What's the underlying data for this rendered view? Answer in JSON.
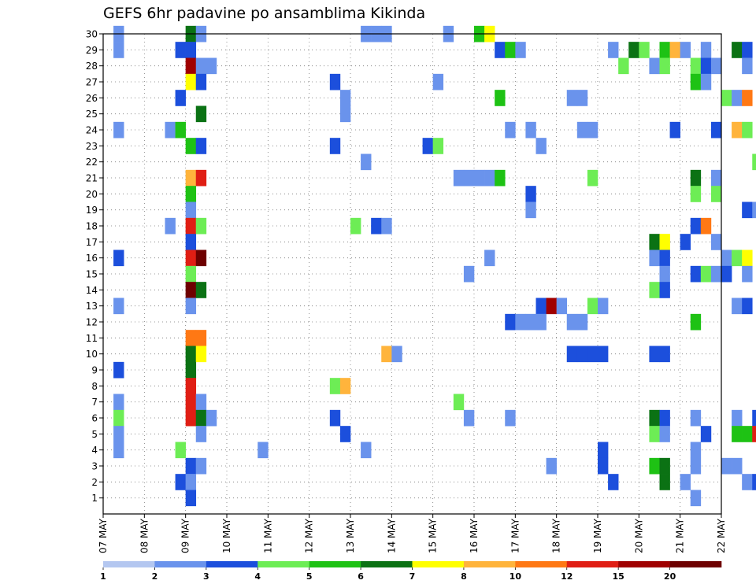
{
  "chart_data": {
    "type": "heatmap",
    "title": "GEFS 6hr padavine po ansamblima Kikinda",
    "xlabel": "",
    "ylabel": "",
    "y_ticks": [
      1,
      2,
      3,
      4,
      5,
      6,
      7,
      8,
      9,
      10,
      11,
      12,
      13,
      14,
      15,
      16,
      17,
      18,
      19,
      20,
      21,
      22,
      23,
      24,
      25,
      26,
      27,
      28,
      29,
      30
    ],
    "y_range": [
      0,
      30
    ],
    "x_range_days": [
      0,
      15
    ],
    "x_ticks": [
      {
        "label": "07 MAY",
        "day": 0
      },
      {
        "label": "08 MAY",
        "day": 1
      },
      {
        "label": "09 MAY",
        "day": 2
      },
      {
        "label": "10 MAY",
        "day": 3
      },
      {
        "label": "11 MAY",
        "day": 4
      },
      {
        "label": "12 MAY",
        "day": 5
      },
      {
        "label": "13 MAY",
        "day": 6
      },
      {
        "label": "14 MAY",
        "day": 7
      },
      {
        "label": "15 MAY",
        "day": 8
      },
      {
        "label": "16 MAY",
        "day": 9
      },
      {
        "label": "17 MAY",
        "day": 10
      },
      {
        "label": "18 MAY",
        "day": 11
      },
      {
        "label": "19 MAY",
        "day": 12
      },
      {
        "label": "20 MAY",
        "day": 13
      },
      {
        "label": "21 MAY",
        "day": 14
      },
      {
        "label": "22 MAY",
        "day": 15
      }
    ],
    "grid": true,
    "legend_position": "bottom",
    "legend": {
      "colors": [
        "#b4c7f0",
        "#6a93ec",
        "#1c4fdc",
        "#6ded55",
        "#1ec214",
        "#0b7214",
        "#ffff00",
        "#ffb43c",
        "#ff7814",
        "#e01e14",
        "#a00000",
        "#6e0000"
      ],
      "labels": [
        "1",
        "2",
        "3",
        "4",
        "5",
        "6",
        "7",
        "8",
        "10",
        "12",
        "15",
        "20"
      ]
    },
    "cells": [
      [
        0.25,
        30,
        1
      ],
      [
        2,
        30,
        5
      ],
      [
        2.25,
        30,
        1
      ],
      [
        6.25,
        30,
        1
      ],
      [
        6.5,
        30,
        1
      ],
      [
        6.75,
        30,
        1
      ],
      [
        8.25,
        30,
        1
      ],
      [
        9,
        30,
        4
      ],
      [
        9.25,
        30,
        6
      ],
      [
        0.25,
        29,
        1
      ],
      [
        1.75,
        29,
        2
      ],
      [
        2,
        29,
        2
      ],
      [
        9.5,
        29,
        2
      ],
      [
        9.75,
        29,
        4
      ],
      [
        10,
        29,
        1
      ],
      [
        12.25,
        29,
        1
      ],
      [
        12.75,
        29,
        5
      ],
      [
        13,
        29,
        3
      ],
      [
        13.5,
        29,
        4
      ],
      [
        13.75,
        29,
        7
      ],
      [
        14,
        29,
        1
      ],
      [
        14.5,
        29,
        1
      ],
      [
        15.25,
        29,
        5
      ],
      [
        15.5,
        29,
        2
      ],
      [
        16.25,
        29,
        1
      ],
      [
        16.5,
        29,
        2
      ],
      [
        17.25,
        29,
        1
      ],
      [
        17.5,
        29,
        2
      ],
      [
        17.75,
        29,
        1
      ],
      [
        18,
        29,
        2
      ],
      [
        18.25,
        29,
        3
      ],
      [
        2,
        28,
        10
      ],
      [
        2.25,
        28,
        1
      ],
      [
        2.5,
        28,
        1
      ],
      [
        12.5,
        28,
        3
      ],
      [
        13.25,
        28,
        1
      ],
      [
        13.5,
        28,
        3
      ],
      [
        14.25,
        28,
        3
      ],
      [
        14.5,
        28,
        2
      ],
      [
        14.75,
        28,
        1
      ],
      [
        15.5,
        28,
        1
      ],
      [
        16.25,
        28,
        3
      ],
      [
        16.5,
        28,
        4
      ],
      [
        17.5,
        28,
        1
      ],
      [
        2,
        27,
        6
      ],
      [
        2.25,
        27,
        2
      ],
      [
        5.5,
        27,
        2
      ],
      [
        8,
        27,
        1
      ],
      [
        14.25,
        27,
        4
      ],
      [
        14.5,
        27,
        1
      ],
      [
        1.75,
        26,
        2
      ],
      [
        5.75,
        26,
        1
      ],
      [
        9.5,
        26,
        4
      ],
      [
        11.25,
        26,
        1
      ],
      [
        11.5,
        26,
        1
      ],
      [
        15,
        26,
        3
      ],
      [
        15.25,
        26,
        1
      ],
      [
        15.5,
        26,
        8
      ],
      [
        2.25,
        25,
        5
      ],
      [
        5.75,
        25,
        1
      ],
      [
        0.25,
        24,
        1
      ],
      [
        1.5,
        24,
        1
      ],
      [
        1.75,
        24,
        4
      ],
      [
        9.75,
        24,
        1
      ],
      [
        10.25,
        24,
        1
      ],
      [
        11.5,
        24,
        1
      ],
      [
        11.75,
        24,
        1
      ],
      [
        13.75,
        24,
        2
      ],
      [
        14.75,
        24,
        2
      ],
      [
        15.25,
        24,
        7
      ],
      [
        15.5,
        24,
        3
      ],
      [
        16.25,
        24,
        1
      ],
      [
        16.5,
        24,
        4
      ],
      [
        2,
        23,
        4
      ],
      [
        2.25,
        23,
        2
      ],
      [
        5.5,
        23,
        2
      ],
      [
        7.75,
        23,
        2
      ],
      [
        8,
        23,
        3
      ],
      [
        10.5,
        23,
        1
      ],
      [
        17.25,
        23,
        3
      ],
      [
        6.25,
        22,
        1
      ],
      [
        15.75,
        22,
        3
      ],
      [
        16,
        22,
        6
      ],
      [
        16.25,
        22,
        2
      ],
      [
        2,
        21,
        7
      ],
      [
        2.25,
        21,
        9
      ],
      [
        8.5,
        21,
        1
      ],
      [
        8.75,
        21,
        1
      ],
      [
        9,
        21,
        1
      ],
      [
        9.25,
        21,
        1
      ],
      [
        9.5,
        21,
        4
      ],
      [
        11.75,
        21,
        3
      ],
      [
        14.25,
        21,
        5
      ],
      [
        14.75,
        21,
        1
      ],
      [
        16.5,
        21,
        1
      ],
      [
        16.75,
        21,
        1
      ],
      [
        17,
        21,
        2
      ],
      [
        17.25,
        21,
        11
      ],
      [
        17.5,
        21,
        2
      ],
      [
        2,
        20,
        4
      ],
      [
        10.25,
        20,
        2
      ],
      [
        14.25,
        20,
        3
      ],
      [
        14.75,
        20,
        3
      ],
      [
        17.25,
        20,
        1
      ],
      [
        2,
        19,
        1
      ],
      [
        10.25,
        19,
        1
      ],
      [
        15.5,
        19,
        2
      ],
      [
        15.75,
        19,
        1
      ],
      [
        16,
        19,
        1
      ],
      [
        16.25,
        19,
        2
      ],
      [
        16.5,
        19,
        6
      ],
      [
        17.25,
        19,
        1
      ],
      [
        17.75,
        19,
        2
      ],
      [
        1.5,
        18,
        1
      ],
      [
        2,
        18,
        9
      ],
      [
        2.25,
        18,
        3
      ],
      [
        6,
        18,
        3
      ],
      [
        6.5,
        18,
        2
      ],
      [
        6.75,
        18,
        1
      ],
      [
        14.25,
        18,
        2
      ],
      [
        14.5,
        18,
        8
      ],
      [
        17.25,
        18,
        5
      ],
      [
        17.5,
        18,
        2
      ],
      [
        17.75,
        18,
        1
      ],
      [
        2,
        17,
        2
      ],
      [
        13.25,
        17,
        5
      ],
      [
        13.5,
        17,
        6
      ],
      [
        14,
        17,
        2
      ],
      [
        14.75,
        17,
        1
      ],
      [
        0.25,
        16,
        2
      ],
      [
        2,
        16,
        9
      ],
      [
        2.25,
        16,
        11
      ],
      [
        9.25,
        16,
        1
      ],
      [
        13.25,
        16,
        1
      ],
      [
        13.5,
        16,
        2
      ],
      [
        15,
        16,
        1
      ],
      [
        15.25,
        16,
        3
      ],
      [
        15.5,
        16,
        6
      ],
      [
        17.75,
        16,
        1
      ],
      [
        2,
        15,
        3
      ],
      [
        8.75,
        15,
        1
      ],
      [
        13.5,
        15,
        1
      ],
      [
        14.25,
        15,
        2
      ],
      [
        14.5,
        15,
        3
      ],
      [
        14.75,
        15,
        1
      ],
      [
        15,
        15,
        2
      ],
      [
        15.5,
        15,
        1
      ],
      [
        17,
        15,
        2
      ],
      [
        17.25,
        15,
        7
      ],
      [
        2,
        14,
        11
      ],
      [
        2.25,
        14,
        5
      ],
      [
        13.25,
        14,
        3
      ],
      [
        13.5,
        14,
        2
      ],
      [
        16.75,
        14,
        1
      ],
      [
        0.25,
        13,
        1
      ],
      [
        2,
        13,
        1
      ],
      [
        10.5,
        13,
        2
      ],
      [
        10.75,
        13,
        10
      ],
      [
        11,
        13,
        1
      ],
      [
        11.75,
        13,
        3
      ],
      [
        12,
        13,
        1
      ],
      [
        15.25,
        13,
        1
      ],
      [
        15.5,
        13,
        2
      ],
      [
        16.5,
        13,
        1
      ],
      [
        16.75,
        13,
        3
      ],
      [
        17.75,
        13,
        3
      ],
      [
        9.75,
        12,
        2
      ],
      [
        10,
        12,
        1
      ],
      [
        10.25,
        12,
        1
      ],
      [
        10.5,
        12,
        1
      ],
      [
        11.25,
        12,
        1
      ],
      [
        11.5,
        12,
        1
      ],
      [
        14.25,
        12,
        4
      ],
      [
        16.5,
        12,
        1
      ],
      [
        2,
        11,
        8
      ],
      [
        2.25,
        11,
        8
      ],
      [
        16,
        11,
        5
      ],
      [
        16.25,
        11,
        4
      ],
      [
        16.5,
        11,
        1
      ],
      [
        2,
        10,
        5
      ],
      [
        2.25,
        10,
        6
      ],
      [
        6.75,
        10,
        7
      ],
      [
        7,
        10,
        1
      ],
      [
        11.25,
        10,
        2
      ],
      [
        11.5,
        10,
        2
      ],
      [
        11.75,
        10,
        2
      ],
      [
        12,
        10,
        2
      ],
      [
        13.25,
        10,
        2
      ],
      [
        13.5,
        10,
        2
      ],
      [
        16.75,
        10,
        2
      ],
      [
        17,
        10,
        3
      ],
      [
        17.25,
        10,
        5
      ],
      [
        17.5,
        10,
        4
      ],
      [
        17.75,
        10,
        4
      ],
      [
        0.25,
        9,
        2
      ],
      [
        2,
        9,
        5
      ],
      [
        2,
        8,
        9
      ],
      [
        5.5,
        8,
        3
      ],
      [
        5.75,
        8,
        7
      ],
      [
        17.75,
        8,
        1
      ],
      [
        0.25,
        7,
        1
      ],
      [
        2,
        7,
        9
      ],
      [
        2.25,
        7,
        1
      ],
      [
        8.5,
        7,
        3
      ],
      [
        16.25,
        7,
        9
      ],
      [
        16.5,
        7,
        2
      ],
      [
        17.5,
        7,
        5
      ],
      [
        17.75,
        7,
        5
      ],
      [
        0.25,
        6,
        3
      ],
      [
        2,
        6,
        9
      ],
      [
        2.25,
        6,
        5
      ],
      [
        2.5,
        6,
        1
      ],
      [
        5.5,
        6,
        2
      ],
      [
        8.75,
        6,
        1
      ],
      [
        9.75,
        6,
        1
      ],
      [
        13.25,
        6,
        5
      ],
      [
        13.5,
        6,
        2
      ],
      [
        14.25,
        6,
        1
      ],
      [
        15.25,
        6,
        1
      ],
      [
        15.75,
        6,
        2
      ],
      [
        16.25,
        6,
        1
      ],
      [
        17,
        6,
        1
      ],
      [
        17.25,
        6,
        2
      ],
      [
        17.75,
        6,
        2
      ],
      [
        0.25,
        5,
        1
      ],
      [
        2.25,
        5,
        1
      ],
      [
        5.75,
        5,
        2
      ],
      [
        13.25,
        5,
        3
      ],
      [
        13.5,
        5,
        1
      ],
      [
        14.5,
        5,
        2
      ],
      [
        15.25,
        5,
        4
      ],
      [
        15.5,
        5,
        4
      ],
      [
        15.75,
        5,
        9
      ],
      [
        16,
        5,
        5
      ],
      [
        16.5,
        5,
        1
      ],
      [
        17.75,
        5,
        3
      ],
      [
        0.25,
        4,
        1
      ],
      [
        1.75,
        4,
        3
      ],
      [
        3.75,
        4,
        1
      ],
      [
        6.25,
        4,
        1
      ],
      [
        12,
        4,
        2
      ],
      [
        14.25,
        4,
        1
      ],
      [
        16.25,
        4,
        2
      ],
      [
        16.5,
        4,
        5
      ],
      [
        17,
        4,
        1
      ],
      [
        2,
        3,
        2
      ],
      [
        2.25,
        3,
        1
      ],
      [
        10.75,
        3,
        1
      ],
      [
        12,
        3,
        2
      ],
      [
        13.25,
        3,
        4
      ],
      [
        13.5,
        3,
        5
      ],
      [
        14.25,
        3,
        1
      ],
      [
        15,
        3,
        1
      ],
      [
        15.25,
        3,
        1
      ],
      [
        1.75,
        2,
        2
      ],
      [
        2,
        2,
        1
      ],
      [
        12.25,
        2,
        2
      ],
      [
        13.5,
        2,
        5
      ],
      [
        14,
        2,
        1
      ],
      [
        15.5,
        2,
        1
      ],
      [
        15.75,
        2,
        2
      ],
      [
        16,
        2,
        1
      ],
      [
        16.25,
        2,
        5
      ],
      [
        2,
        1,
        2
      ],
      [
        14.25,
        1,
        1
      ]
    ]
  }
}
